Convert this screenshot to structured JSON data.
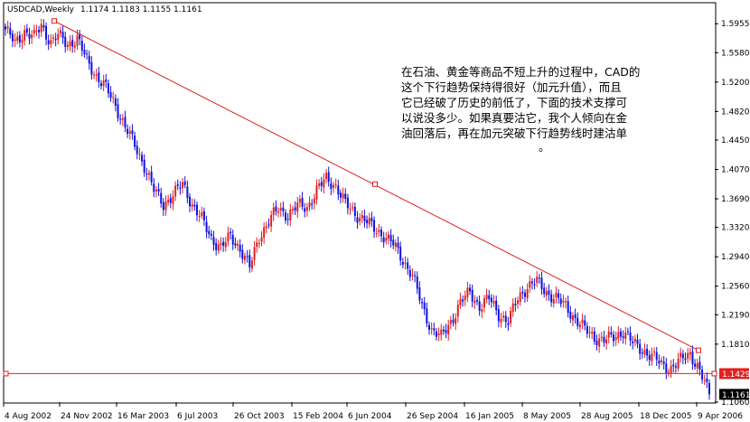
{
  "header": {
    "symbol": "USDCAD,Weekly",
    "ohlc": "1.1174 1.1183 1.1155 1.1161"
  },
  "annotation": {
    "lines": [
      "在石油、黄金等商品不短上升的过程中，CAD的",
      "这个下行趋势保持得很好（加元升值），而且",
      "它已经破了历史的前低了，下面的技术支撑可",
      "以说没多少。如果真要沽它，我个人倾向在金",
      "油回落后，再在加元突破下行趋势线时建沽单",
      "。"
    ]
  },
  "colors": {
    "up": "#e02020",
    "down": "#1010e0",
    "trendline": "#e02020",
    "price_badge": "#e02020",
    "current_badge": "#000000"
  },
  "chart_data": {
    "type": "candlestick",
    "title": "USDCAD,Weekly",
    "ylim": [
      1.106,
      1.6215
    ],
    "y_ticks": [
      1.5955,
      1.558,
      1.52,
      1.482,
      1.445,
      1.407,
      1.369,
      1.332,
      1.294,
      1.256,
      1.219,
      1.181,
      1.106
    ],
    "x_tick_labels": [
      "4 Aug 2002",
      "24 Nov 2002",
      "16 Mar 2003",
      "6 Jul 2003",
      "26 Oct 2003",
      "15 Feb 2004",
      "6 Jun 2004",
      "26 Sep 2004",
      "16 Jan 2005",
      "8 May 2005",
      "28 Aug 2005",
      "18 Dec 2005",
      "9 Apr 2006"
    ],
    "grid": false,
    "trend_line": {
      "from": {
        "date": "17 Nov 2002",
        "price": 1.599
      },
      "to": {
        "date": "26 Mar 2006",
        "price": 1.173
      },
      "mid_points": [
        {
          "date": "9 May 2004",
          "price": 1.388
        }
      ]
    },
    "support_line": {
      "price": 1.1429,
      "label": "1.1429"
    },
    "current_price": {
      "price": 1.1161,
      "label": "1.1161"
    },
    "close_path": [
      [
        0,
        1.588
      ],
      [
        4,
        1.57
      ],
      [
        8,
        1.586
      ],
      [
        12,
        1.578
      ],
      [
        15,
        1.593
      ],
      [
        19,
        1.572
      ],
      [
        22,
        1.58
      ],
      [
        26,
        1.569
      ],
      [
        30,
        1.576
      ],
      [
        34,
        1.548
      ],
      [
        38,
        1.528
      ],
      [
        42,
        1.512
      ],
      [
        46,
        1.49
      ],
      [
        50,
        1.462
      ],
      [
        54,
        1.438
      ],
      [
        58,
        1.412
      ],
      [
        62,
        1.38
      ],
      [
        66,
        1.362
      ],
      [
        70,
        1.374
      ],
      [
        74,
        1.388
      ],
      [
        78,
        1.362
      ],
      [
        82,
        1.342
      ],
      [
        86,
        1.318
      ],
      [
        90,
        1.306
      ],
      [
        94,
        1.32
      ],
      [
        98,
        1.305
      ],
      [
        102,
        1.28
      ],
      [
        106,
        1.32
      ],
      [
        110,
        1.34
      ],
      [
        114,
        1.356
      ],
      [
        118,
        1.348
      ],
      [
        122,
        1.36
      ],
      [
        126,
        1.358
      ],
      [
        130,
        1.38
      ],
      [
        134,
        1.395
      ],
      [
        138,
        1.386
      ],
      [
        142,
        1.362
      ],
      [
        146,
        1.35
      ],
      [
        150,
        1.342
      ],
      [
        154,
        1.33
      ],
      [
        158,
        1.322
      ],
      [
        162,
        1.31
      ],
      [
        166,
        1.29
      ],
      [
        170,
        1.27
      ],
      [
        174,
        1.23
      ],
      [
        178,
        1.2
      ],
      [
        182,
        1.19
      ],
      [
        186,
        1.21
      ],
      [
        190,
        1.235
      ],
      [
        194,
        1.248
      ],
      [
        198,
        1.23
      ],
      [
        202,
        1.24
      ],
      [
        206,
        1.22
      ],
      [
        210,
        1.21
      ],
      [
        214,
        1.24
      ],
      [
        218,
        1.256
      ],
      [
        222,
        1.262
      ],
      [
        226,
        1.248
      ],
      [
        230,
        1.24
      ],
      [
        234,
        1.23
      ],
      [
        238,
        1.214
      ],
      [
        242,
        1.2
      ],
      [
        246,
        1.19
      ],
      [
        250,
        1.186
      ],
      [
        254,
        1.19
      ],
      [
        258,
        1.198
      ],
      [
        262,
        1.182
      ],
      [
        266,
        1.174
      ],
      [
        270,
        1.165
      ],
      [
        274,
        1.155
      ],
      [
        278,
        1.15
      ],
      [
        282,
        1.16
      ],
      [
        286,
        1.17
      ],
      [
        290,
        1.145
      ],
      [
        294,
        1.1161
      ]
    ]
  }
}
